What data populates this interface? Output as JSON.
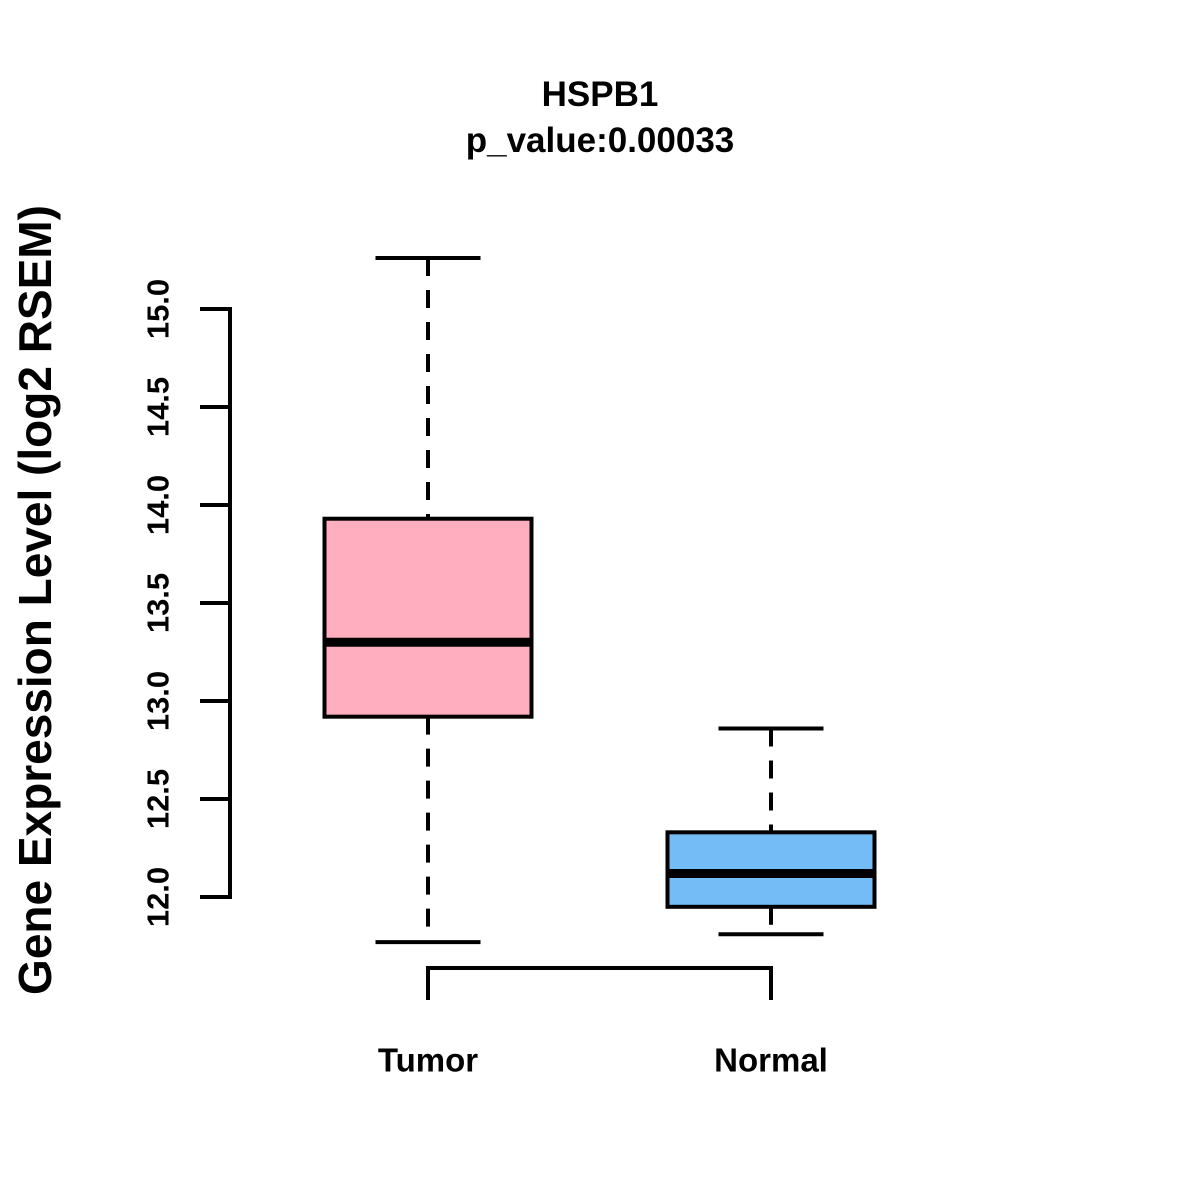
{
  "title": {
    "gene": "HSPB1",
    "p_value_line": "p_value:0.00033"
  },
  "chart_data": {
    "type": "boxplot",
    "title": "HSPB1",
    "subtitle": "p_value:0.00033",
    "ylabel": "Gene Expression Level (log2 RSEM)",
    "ylim": [
      12.0,
      15.0
    ],
    "y_ticks": [
      "12.0",
      "12.5",
      "13.0",
      "13.5",
      "14.0",
      "14.5",
      "15.0"
    ],
    "grid": false,
    "legend": "none",
    "categories": [
      "Tumor",
      "Normal"
    ],
    "series": [
      {
        "name": "Tumor",
        "color": "#FFAEC0",
        "whisker_low": 11.77,
        "q1": 12.92,
        "median": 13.3,
        "q3": 13.93,
        "whisker_high": 15.26
      },
      {
        "name": "Normal",
        "color": "#74BCF5",
        "whisker_low": 11.81,
        "q1": 11.95,
        "median": 12.12,
        "q3": 12.33,
        "whisker_high": 12.86
      }
    ],
    "comparison_bracket": true,
    "stroke_color": "#000000",
    "background": "#FFFFFF"
  }
}
